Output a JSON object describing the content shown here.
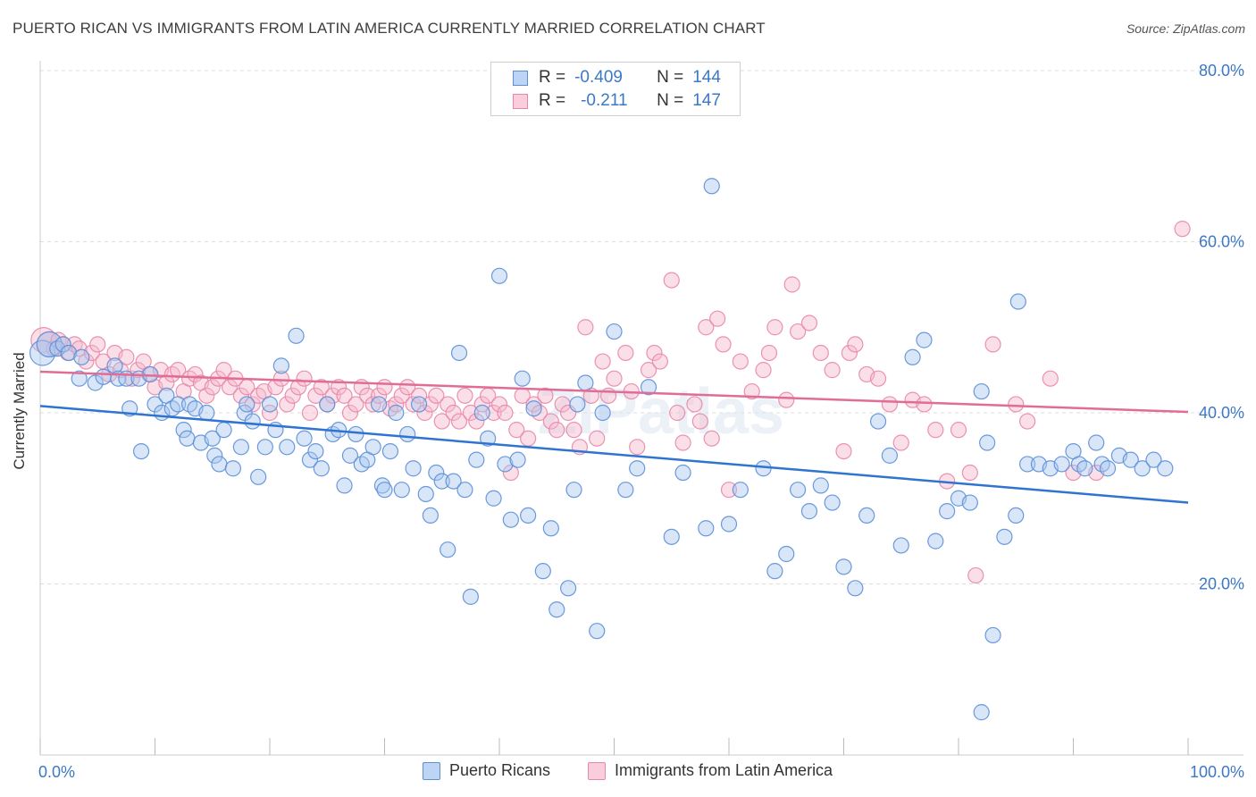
{
  "title": "PUERTO RICAN VS IMMIGRANTS FROM LATIN AMERICA CURRENTLY MARRIED CORRELATION CHART",
  "source": "Source: ZipAtlas.com",
  "watermark": "ZIPatlas",
  "legend_top": {
    "r_label": "R =",
    "n_label": "N =",
    "rows": [
      {
        "r": "-0.409",
        "n": "144"
      },
      {
        "r": "-0.211",
        "n": "147"
      }
    ]
  },
  "colors": {
    "blue_fill": "#a9c8f0",
    "blue_stroke": "#5b8fd8",
    "blue_line": "#2f74d0",
    "pink_fill": "#f6b8cc",
    "pink_stroke": "#e887a8",
    "pink_line": "#e06d95",
    "tick_label": "#3b78c6",
    "grid": "#dcdcdc"
  },
  "chart_data": {
    "type": "scatter",
    "title": "PUERTO RICAN VS IMMIGRANTS FROM LATIN AMERICA CURRENTLY MARRIED CORRELATION CHART",
    "xlabel": "",
    "ylabel": "Currently Married",
    "xlim": [
      0,
      100
    ],
    "ylim": [
      0,
      80
    ],
    "x_tick_labels": [
      "0.0%",
      "100.0%"
    ],
    "y_ticks": [
      20,
      40,
      60,
      80
    ],
    "y_tick_labels": [
      "20.0%",
      "40.0%",
      "60.0%",
      "80.0%"
    ],
    "grid": true,
    "legend_position": "top-center",
    "series": [
      {
        "name": "Puerto Ricans",
        "r": -0.409,
        "n": 144,
        "trend": {
          "x": [
            0,
            100
          ],
          "y": [
            40.8,
            29.5
          ]
        },
        "points": [
          [
            0.2,
            47
          ],
          [
            0.8,
            48
          ],
          [
            1.5,
            47.5
          ],
          [
            2,
            48
          ],
          [
            2.5,
            47
          ],
          [
            3.4,
            44
          ],
          [
            3.6,
            46.5
          ],
          [
            4.8,
            43.5
          ],
          [
            5.5,
            44.2
          ],
          [
            6.5,
            45.5
          ],
          [
            6.8,
            44
          ],
          [
            7.5,
            44
          ],
          [
            7.8,
            40.5
          ],
          [
            8.6,
            44
          ],
          [
            8.8,
            35.5
          ],
          [
            9.6,
            44.5
          ],
          [
            10,
            41
          ],
          [
            10.6,
            40
          ],
          [
            11,
            42
          ],
          [
            11.5,
            40.5
          ],
          [
            12,
            41
          ],
          [
            12.5,
            38
          ],
          [
            12.8,
            37
          ],
          [
            13,
            41
          ],
          [
            13.5,
            40.5
          ],
          [
            14,
            36.5
          ],
          [
            14.5,
            40
          ],
          [
            15,
            37
          ],
          [
            15.2,
            35
          ],
          [
            15.6,
            34
          ],
          [
            16,
            38
          ],
          [
            16.8,
            33.5
          ],
          [
            17.5,
            36
          ],
          [
            17.8,
            40
          ],
          [
            18,
            41
          ],
          [
            18.5,
            39
          ],
          [
            19,
            32.5
          ],
          [
            19.6,
            36
          ],
          [
            20,
            41
          ],
          [
            20.5,
            38
          ],
          [
            21,
            45.5
          ],
          [
            21.5,
            36
          ],
          [
            22.3,
            49
          ],
          [
            23,
            37
          ],
          [
            23.5,
            34.5
          ],
          [
            24,
            35.5
          ],
          [
            24.5,
            33.5
          ],
          [
            25,
            41
          ],
          [
            25.5,
            37.5
          ],
          [
            26,
            38
          ],
          [
            26.5,
            31.5
          ],
          [
            27,
            35
          ],
          [
            27.5,
            37.5
          ],
          [
            28,
            34
          ],
          [
            28.5,
            34.5
          ],
          [
            29,
            36
          ],
          [
            29.5,
            41
          ],
          [
            29.8,
            31.5
          ],
          [
            30,
            31
          ],
          [
            30.5,
            35.5
          ],
          [
            31,
            40
          ],
          [
            31.5,
            31
          ],
          [
            32,
            37.5
          ],
          [
            32.5,
            33.5
          ],
          [
            33,
            41
          ],
          [
            33.6,
            30.5
          ],
          [
            34,
            28
          ],
          [
            34.5,
            33
          ],
          [
            35,
            32
          ],
          [
            35.5,
            24
          ],
          [
            36,
            32
          ],
          [
            36.5,
            47
          ],
          [
            37,
            31
          ],
          [
            37.5,
            18.5
          ],
          [
            38,
            34.5
          ],
          [
            38.5,
            40
          ],
          [
            39,
            37
          ],
          [
            39.5,
            30
          ],
          [
            40,
            56
          ],
          [
            40.5,
            34
          ],
          [
            41,
            27.5
          ],
          [
            41.6,
            34.5
          ],
          [
            42,
            44
          ],
          [
            42.5,
            28
          ],
          [
            43,
            40.5
          ],
          [
            43.8,
            21.5
          ],
          [
            44.5,
            26.5
          ],
          [
            45,
            17
          ],
          [
            46,
            19.5
          ],
          [
            46.5,
            31
          ],
          [
            46.8,
            41
          ],
          [
            47.5,
            43.5
          ],
          [
            48.5,
            14.5
          ],
          [
            49,
            40
          ],
          [
            50,
            49.5
          ],
          [
            51,
            31
          ],
          [
            52,
            33.5
          ],
          [
            53,
            43
          ],
          [
            55,
            25.5
          ],
          [
            56,
            33
          ],
          [
            58,
            26.5
          ],
          [
            58.5,
            66.5
          ],
          [
            60,
            27
          ],
          [
            61,
            31
          ],
          [
            63,
            33.5
          ],
          [
            64,
            21.5
          ],
          [
            65,
            23.5
          ],
          [
            66,
            31
          ],
          [
            67,
            28.5
          ],
          [
            68,
            31.5
          ],
          [
            69,
            29.5
          ],
          [
            70,
            22
          ],
          [
            71,
            19.5
          ],
          [
            72,
            28
          ],
          [
            73,
            39
          ],
          [
            74,
            35
          ],
          [
            75,
            24.5
          ],
          [
            76,
            46.5
          ],
          [
            77,
            48.5
          ],
          [
            78,
            25
          ],
          [
            79,
            28.5
          ],
          [
            80,
            30
          ],
          [
            81,
            29.5
          ],
          [
            82,
            42.5
          ],
          [
            82.5,
            36.5
          ],
          [
            83,
            14
          ],
          [
            84,
            25.5
          ],
          [
            85,
            28
          ],
          [
            86,
            34
          ],
          [
            87,
            34
          ],
          [
            88,
            33.5
          ],
          [
            89,
            34
          ],
          [
            90,
            35.5
          ],
          [
            90.5,
            34
          ],
          [
            91,
            33.5
          ],
          [
            92,
            36.5
          ],
          [
            92.5,
            34
          ],
          [
            93,
            33.5
          ],
          [
            94,
            35
          ],
          [
            95,
            34.5
          ],
          [
            96,
            33.5
          ],
          [
            97,
            34.5
          ],
          [
            98,
            33.5
          ],
          [
            82,
            5
          ],
          [
            85.2,
            53
          ]
        ]
      },
      {
        "name": "Immigrants from Latin America",
        "r": -0.211,
        "n": 147,
        "trend": {
          "x": [
            0,
            100
          ],
          "y": [
            44.8,
            40.1
          ]
        },
        "points": [
          [
            0.3,
            48.5
          ],
          [
            0.8,
            48
          ],
          [
            1.2,
            47.5
          ],
          [
            1.6,
            48.5
          ],
          [
            2,
            48
          ],
          [
            2.4,
            47
          ],
          [
            3,
            48
          ],
          [
            3.4,
            47.5
          ],
          [
            4,
            46
          ],
          [
            4.5,
            47
          ],
          [
            5,
            48
          ],
          [
            5.5,
            46
          ],
          [
            6,
            44.5
          ],
          [
            6.5,
            47
          ],
          [
            7,
            45
          ],
          [
            7.5,
            46.5
          ],
          [
            8,
            44
          ],
          [
            8.5,
            45
          ],
          [
            9,
            46
          ],
          [
            9.5,
            44.5
          ],
          [
            10,
            43
          ],
          [
            10.5,
            45
          ],
          [
            11,
            43.5
          ],
          [
            11.5,
            44.5
          ],
          [
            12,
            45
          ],
          [
            12.5,
            42.5
          ],
          [
            13,
            44
          ],
          [
            13.5,
            44.5
          ],
          [
            14,
            43.5
          ],
          [
            14.5,
            42
          ],
          [
            15,
            43
          ],
          [
            15.5,
            44
          ],
          [
            16,
            45
          ],
          [
            16.5,
            43
          ],
          [
            17,
            44
          ],
          [
            17.5,
            42
          ],
          [
            18,
            43
          ],
          [
            18.5,
            41
          ],
          [
            19,
            42
          ],
          [
            19.5,
            42.5
          ],
          [
            20,
            40
          ],
          [
            20.5,
            43
          ],
          [
            21,
            44
          ],
          [
            21.5,
            41
          ],
          [
            22,
            42
          ],
          [
            22.5,
            43
          ],
          [
            23,
            44
          ],
          [
            23.5,
            40
          ],
          [
            24,
            42
          ],
          [
            24.5,
            43
          ],
          [
            25,
            41
          ],
          [
            25.5,
            42
          ],
          [
            26,
            43
          ],
          [
            26.5,
            42
          ],
          [
            27,
            40
          ],
          [
            27.5,
            41
          ],
          [
            28,
            43
          ],
          [
            28.5,
            42
          ],
          [
            29,
            41
          ],
          [
            29.5,
            42
          ],
          [
            30,
            43
          ],
          [
            30.5,
            40.5
          ],
          [
            31,
            41
          ],
          [
            31.5,
            42
          ],
          [
            32,
            43
          ],
          [
            32.5,
            41
          ],
          [
            33,
            42
          ],
          [
            33.5,
            40
          ],
          [
            34,
            41
          ],
          [
            34.5,
            42
          ],
          [
            35,
            39
          ],
          [
            35.5,
            41
          ],
          [
            36,
            40
          ],
          [
            36.5,
            39
          ],
          [
            37,
            42
          ],
          [
            37.5,
            40
          ],
          [
            38,
            39
          ],
          [
            38.5,
            41
          ],
          [
            39,
            42
          ],
          [
            39.5,
            40
          ],
          [
            40,
            41
          ],
          [
            40.5,
            40
          ],
          [
            41,
            33
          ],
          [
            41.5,
            38
          ],
          [
            42,
            42
          ],
          [
            42.5,
            37
          ],
          [
            43,
            41
          ],
          [
            43.5,
            40
          ],
          [
            44,
            42
          ],
          [
            44.5,
            39
          ],
          [
            45,
            38
          ],
          [
            45.5,
            41
          ],
          [
            46,
            40
          ],
          [
            46.5,
            38
          ],
          [
            47,
            36
          ],
          [
            47.5,
            50
          ],
          [
            48,
            42
          ],
          [
            48.5,
            37
          ],
          [
            49,
            46
          ],
          [
            49.5,
            42
          ],
          [
            50,
            44
          ],
          [
            51,
            47
          ],
          [
            51.5,
            42.5
          ],
          [
            52,
            36
          ],
          [
            53,
            45
          ],
          [
            53.5,
            47
          ],
          [
            54,
            46
          ],
          [
            55,
            55.5
          ],
          [
            55.5,
            40
          ],
          [
            56,
            36.5
          ],
          [
            57,
            41
          ],
          [
            57.5,
            39
          ],
          [
            58,
            50
          ],
          [
            58.5,
            37
          ],
          [
            59,
            51
          ],
          [
            59.5,
            48
          ],
          [
            60,
            31
          ],
          [
            61,
            46
          ],
          [
            62,
            42.5
          ],
          [
            63,
            45
          ],
          [
            63.5,
            47
          ],
          [
            64,
            50
          ],
          [
            65,
            41.5
          ],
          [
            65.5,
            55
          ],
          [
            66,
            49.5
          ],
          [
            67,
            50.5
          ],
          [
            68,
            47
          ],
          [
            69,
            45
          ],
          [
            70,
            35.5
          ],
          [
            70.5,
            47
          ],
          [
            71,
            48
          ],
          [
            72,
            44.5
          ],
          [
            73,
            44
          ],
          [
            74,
            41
          ],
          [
            75,
            36.5
          ],
          [
            76,
            41.5
          ],
          [
            77,
            41
          ],
          [
            78,
            38
          ],
          [
            79,
            32
          ],
          [
            80,
            38
          ],
          [
            81,
            33
          ],
          [
            81.5,
            21
          ],
          [
            83,
            48
          ],
          [
            85,
            41
          ],
          [
            86,
            39
          ],
          [
            88,
            44
          ],
          [
            90,
            33
          ],
          [
            92,
            33
          ],
          [
            99.5,
            61.5
          ]
        ]
      }
    ]
  }
}
